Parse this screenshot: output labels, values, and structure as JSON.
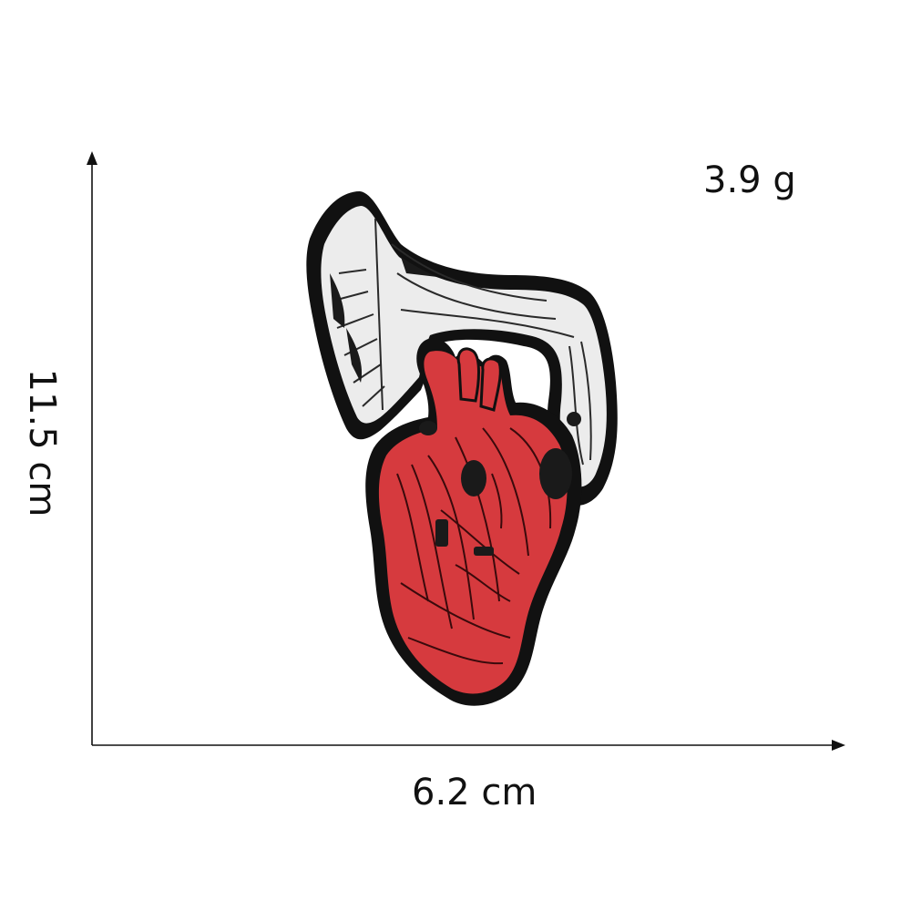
{
  "dimensions": {
    "height_label": "11.5 cm",
    "width_label": "6.2 cm",
    "weight_label": "3.9 g"
  },
  "product": {
    "icon": "heart-gramophone-patch-icon",
    "colors": {
      "heart": "#d63a3e",
      "heart_dark": "#8e1a1f",
      "horn": "#ececec",
      "outline": "#111111"
    }
  }
}
